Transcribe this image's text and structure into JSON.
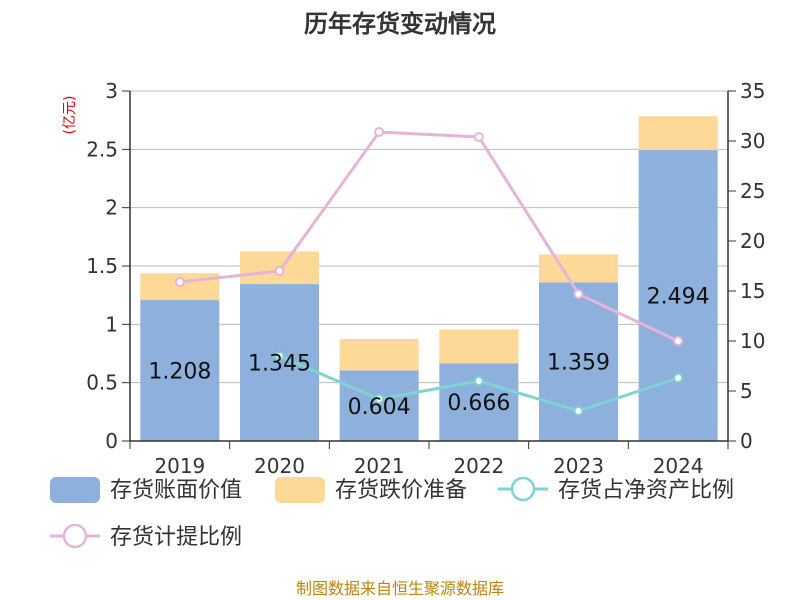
{
  "title": "历年存货变动情况",
  "footer": "制图数据来自恒生聚源数据库",
  "left_axis_unit": "(亿元)",
  "colors": {
    "book_value": "#8eb0dc",
    "provision": "#fdd896",
    "ratio_net_assets": "#7fd3d3",
    "provision_ratio": "#e5b4d9",
    "axis": "#333333",
    "grid": "#bbbbbb",
    "unit": "#e00000",
    "footer": "#b8860b"
  },
  "chart_data": {
    "type": "bar",
    "categories": [
      "2019",
      "2020",
      "2021",
      "2022",
      "2023",
      "2024"
    ],
    "ylim": [
      0,
      3
    ],
    "y_ticks": [
      0,
      0.5,
      1,
      1.5,
      2,
      2.5,
      3
    ],
    "y2lim": [
      0,
      35
    ],
    "y2_ticks": [
      0,
      5,
      10,
      15,
      20,
      25,
      30,
      35
    ],
    "grid": true,
    "legend_position": "bottom",
    "series": [
      {
        "name": "存货账面价值",
        "kind": "bar",
        "stack": "inventory",
        "axis": "left",
        "values": [
          1.208,
          1.345,
          0.604,
          0.666,
          1.359,
          2.494
        ],
        "data_labels": [
          "1.208",
          "1.345",
          "0.604",
          "0.666",
          "1.359",
          "2.494"
        ]
      },
      {
        "name": "存货跌价准备",
        "kind": "bar",
        "stack": "inventory",
        "axis": "left",
        "values": [
          0.23,
          0.28,
          0.27,
          0.29,
          0.24,
          0.29
        ]
      },
      {
        "name": "存货占净资产比例",
        "kind": "line",
        "axis": "right",
        "values": [
          null,
          8.5,
          4.2,
          6.0,
          3.0,
          6.3
        ]
      },
      {
        "name": "存货计提比例",
        "kind": "line",
        "axis": "right",
        "values": [
          15.9,
          17.0,
          30.9,
          30.4,
          14.7,
          10.0
        ]
      }
    ]
  }
}
